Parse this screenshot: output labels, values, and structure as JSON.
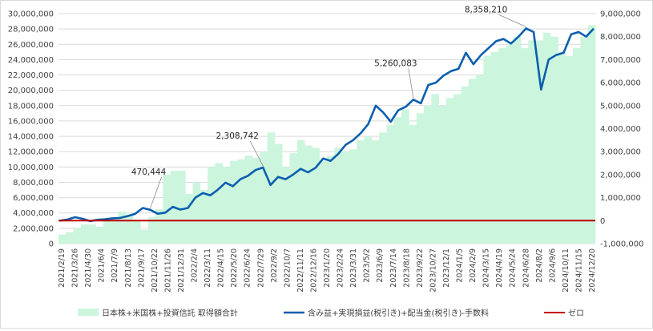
{
  "chart_data": {
    "type": "bar+line",
    "title": "",
    "y_left": {
      "ylim": [
        0,
        30000000
      ],
      "ticks": [
        "0",
        "2,000,000",
        "4,000,000",
        "6,000,000",
        "8,000,000",
        "10,000,000",
        "12,000,000",
        "14,000,000",
        "16,000,000",
        "18,000,000",
        "20,000,000",
        "22,000,000",
        "24,000,000",
        "26,000,000",
        "28,000,000",
        "30,000,000"
      ]
    },
    "y_right": {
      "ylim": [
        -1000000,
        9000000
      ],
      "ticks": [
        "-1,000,000",
        "0",
        "1,000,000",
        "2,000,000",
        "3,000,000",
        "4,000,000",
        "5,000,000",
        "6,000,000",
        "7,000,000",
        "8,000,000",
        "9,000,000"
      ]
    },
    "x_tick_labels": [
      "2021/2/19",
      "2021/3/26",
      "2021/4/30",
      "2021/6/4",
      "2021/7/9",
      "2021/8/13",
      "2021/9/17",
      "2021/10/22",
      "2021/11/26",
      "2021/12/31",
      "2022/2/4",
      "2022/3/11",
      "2022/4/15",
      "2022/5/20",
      "2022/6/24",
      "2022/7/29",
      "2022/9/2",
      "2022/10/7",
      "2022/11/11",
      "2022/12/16",
      "2023/1/20",
      "2023/2/24",
      "2023/3/31",
      "2023/5/2",
      "2023/6/9",
      "2023/7/14",
      "2023/8/18",
      "2023/9/22",
      "2023/10/27",
      "2023/12/1",
      "2024/1/5",
      "2024/2/9",
      "2024/3/15",
      "2024/4/19",
      "2024/5/24",
      "2024/6/28",
      "2024/8/2",
      "2024/9/6",
      "2024/10/11",
      "2024/11/15",
      "2024/12/20"
    ],
    "grid": true,
    "legend_position": "bottom",
    "series": [
      {
        "name": "日本株+米国株+投資信託 取得額合計",
        "type": "bar",
        "axis": "left",
        "color": "#ccf5de",
        "values": [
          1200000,
          1500000,
          2000000,
          2500000,
          2500000,
          2200000,
          3000000,
          3500000,
          4200000,
          3800000,
          3000000,
          1800000,
          3500000,
          4500000,
          9000000,
          9500000,
          9500000,
          6500000,
          8000000,
          7000000,
          10000000,
          10500000,
          10000000,
          10800000,
          11000000,
          11500000,
          11200000,
          12000000,
          14500000,
          13000000,
          10000000,
          11800000,
          13500000,
          12800000,
          12500000,
          10800000,
          11500000,
          12500000,
          12000000,
          12300000,
          13500000,
          14000000,
          13500000,
          14500000,
          15500000,
          16500000,
          17500000,
          15500000,
          17000000,
          18000000,
          19500000,
          18000000,
          19000000,
          19500000,
          20500000,
          21500000,
          22000000,
          24500000,
          25000000,
          25500000,
          26000000,
          27000000,
          25500000,
          26500000,
          26500000,
          27500000,
          27000000,
          25000000,
          24500000,
          25500000,
          27000000,
          28500000
        ]
      },
      {
        "name": "含み益+実現損益(税引き)+配当金(税引き)-手数料",
        "type": "line",
        "axis": "right",
        "color": "#0b5fae",
        "values": [
          0,
          50000,
          150000,
          80000,
          -20000,
          40000,
          60000,
          100000,
          120000,
          200000,
          300000,
          550000,
          470444,
          300000,
          350000,
          600000,
          480000,
          550000,
          1000000,
          1200000,
          1100000,
          1350000,
          1650000,
          1500000,
          1800000,
          1950000,
          2200000,
          2308742,
          1550000,
          1900000,
          1800000,
          2000000,
          2250000,
          2100000,
          2300000,
          2700000,
          2600000,
          2900000,
          3300000,
          3500000,
          3800000,
          4200000,
          5000000,
          4700000,
          4300000,
          4800000,
          4950000,
          5260083,
          5100000,
          5900000,
          6000000,
          6300000,
          6500000,
          6600000,
          7300000,
          6800000,
          7200000,
          7500000,
          7800000,
          7900000,
          7700000,
          8000000,
          8358210,
          8200000,
          5700000,
          7000000,
          7200000,
          7300000,
          8100000,
          8200000,
          8000000,
          8350000
        ]
      },
      {
        "name": "ゼロ",
        "type": "line",
        "axis": "right",
        "color": "#c00000",
        "values": [
          0,
          0
        ]
      }
    ],
    "annotations": [
      {
        "text": "470,444",
        "series": 1,
        "index": 12
      },
      {
        "text": "2,308,742",
        "series": 1,
        "index": 27
      },
      {
        "text": "5,260,083",
        "series": 1,
        "index": 47
      },
      {
        "text": "8,358,210",
        "series": 1,
        "index": 62
      }
    ]
  }
}
